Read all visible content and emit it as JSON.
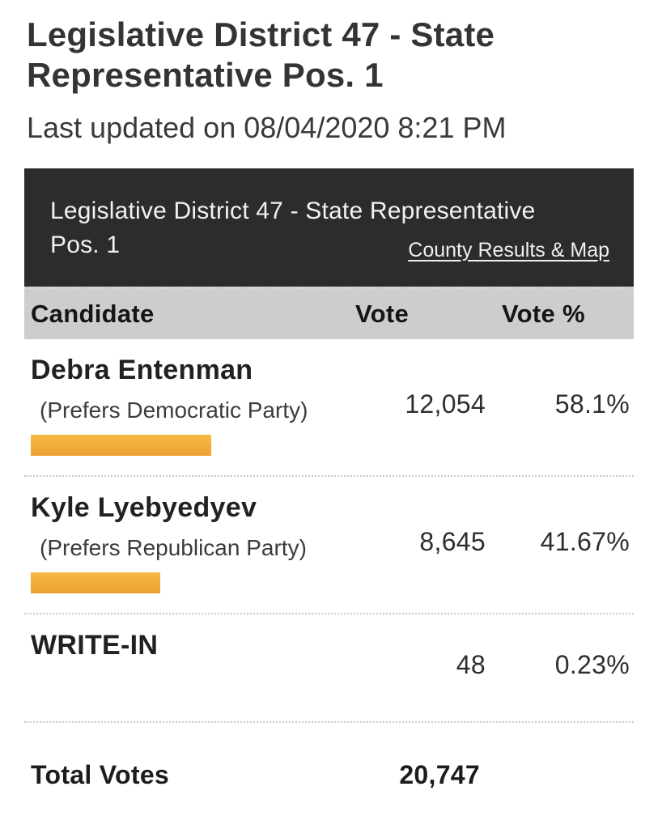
{
  "page": {
    "title": "Legislative District 47 - State Representative Pos. 1",
    "last_updated": "Last updated on 08/04/2020 8:21 PM"
  },
  "contest": {
    "title": "Legislative District 47 - State Representative Pos. 1",
    "link_label": "County Results & Map"
  },
  "table": {
    "headers": [
      "Candidate",
      "Vote",
      "Vote %"
    ],
    "rows": [
      {
        "name": "Debra Entenman",
        "party": "(Prefers Democratic Party)",
        "votes": "12,054",
        "pct_label": "58.1%",
        "pct": 58.1,
        "bar": true
      },
      {
        "name": "Kyle Lyebyedyev",
        "party": "(Prefers Republican Party)",
        "votes": "8,645",
        "pct_label": "41.67%",
        "pct": 41.67,
        "bar": true
      },
      {
        "name": "WRITE-IN",
        "party": "",
        "votes": "48",
        "pct_label": "0.23%",
        "pct": 0.23,
        "bar": false
      }
    ],
    "total_label": "Total Votes",
    "total_value": "20,747"
  },
  "colors": {
    "header_bg": "#2c2c2c",
    "subheader_bg": "#cdcdcd",
    "bar_gradient_top": "#f6b946",
    "bar_gradient_bottom": "#eca133"
  },
  "chart_data": {
    "type": "bar",
    "categories": [
      "Debra Entenman",
      "Kyle Lyebyedyev",
      "WRITE-IN"
    ],
    "series": [
      {
        "name": "Vote",
        "values": [
          12054,
          8645,
          48
        ]
      },
      {
        "name": "Vote %",
        "values": [
          58.1,
          41.67,
          0.23
        ]
      }
    ],
    "title": "Legislative District 47 - State Representative Pos. 1",
    "total_votes": 20747,
    "xlim": [
      0,
      100
    ],
    "legend_position": "none",
    "grid": false
  }
}
